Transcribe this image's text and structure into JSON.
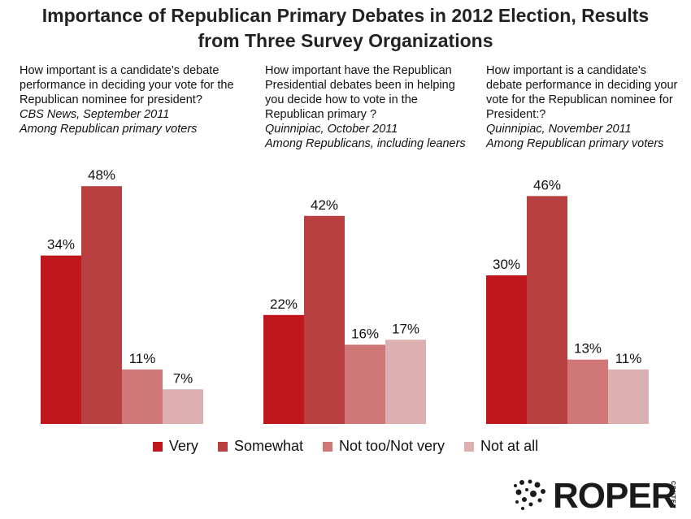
{
  "title_line1": "Importance of Republican Primary Debates in 2012 Election, Results",
  "title_line2": "from Three Survey Organizations",
  "panels": [
    {
      "question": " How important is a candidate's debate performance in deciding your vote for the Republican nominee for president?",
      "source": " CBS News, September 2011",
      "population": " Among Republican primary voters"
    },
    {
      "question": "How important have the Republican Presidential debates been in helping you decide how to vote in the Republican primary ?",
      "source": "Quinnipiac, October 2011",
      "population": "Among Republicans, including leaners"
    },
    {
      "question": "How important is a candidate's debate performance in deciding your vote for the Republican nominee for President:?",
      "source": "Quinnipiac, November 2011",
      "population": "Among Republican primary voters"
    }
  ],
  "legend": [
    "Very",
    "Somewhat",
    "Not too/Not very",
    "Not at all"
  ],
  "colors": [
    "#c0171d",
    "#b84040",
    "#d07878",
    "#dcb0b0"
  ],
  "logo": {
    "text": "ROPER",
    "sub": "CENTER"
  },
  "chart_data": {
    "type": "bar",
    "series_names": [
      "Very",
      "Somewhat",
      "Not too/Not very",
      "Not at all"
    ],
    "groups": [
      {
        "values": [
          34,
          48,
          11,
          7
        ]
      },
      {
        "values": [
          22,
          42,
          16,
          17
        ]
      },
      {
        "values": [
          30,
          46,
          13,
          11
        ]
      }
    ],
    "unit": "%",
    "ylim": [
      0,
      50
    ],
    "grid": false,
    "legend_position": "bottom"
  }
}
